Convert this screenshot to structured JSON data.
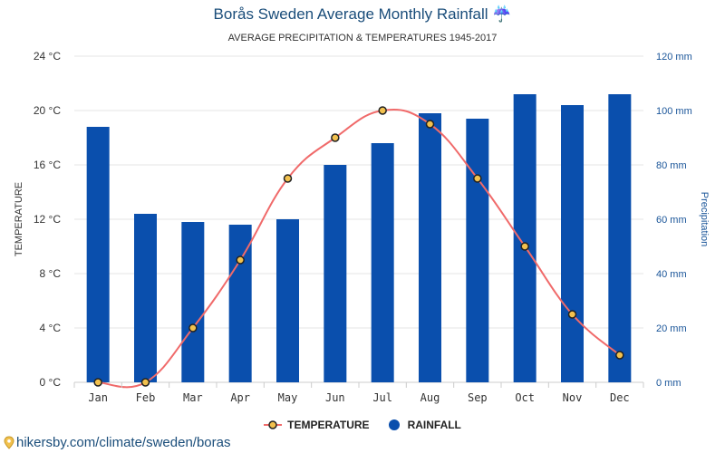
{
  "title": "Borås Sweden Average Monthly Rainfall ☔",
  "subtitle": "AVERAGE PRECIPITATION & TEMPERATURES 1945-2017",
  "footer": "hikersby.com/climate/sweden/boras",
  "legend": {
    "temperature": "TEMPERATURE",
    "rainfall": "RAINFALL"
  },
  "colors": {
    "bar": "#0a4fad",
    "line": "#f06a6a",
    "marker_fill": "#f2c14e",
    "marker_stroke": "#222222",
    "title": "#1a4d7a",
    "right_axis": "#1a5599"
  },
  "chart_data": {
    "type": "bar",
    "categories": [
      "Jan",
      "Feb",
      "Mar",
      "Apr",
      "May",
      "Jun",
      "Jul",
      "Aug",
      "Sep",
      "Oct",
      "Nov",
      "Dec"
    ],
    "series": [
      {
        "name": "RAINFALL",
        "type": "bar",
        "axis": "right",
        "unit": "mm",
        "values": [
          94,
          62,
          59,
          58,
          60,
          80,
          88,
          99,
          97,
          106,
          102,
          106
        ]
      },
      {
        "name": "TEMPERATURE",
        "type": "line",
        "axis": "left",
        "unit": "°C",
        "values": [
          0,
          0,
          4,
          9,
          15,
          18,
          20,
          19,
          15,
          10,
          5,
          2
        ]
      }
    ],
    "ylabel": "TEMPERATURE",
    "y2label": "Precipitation",
    "ylim": [
      0,
      24
    ],
    "y2lim": [
      0,
      120
    ],
    "yticks": [
      "0 °C",
      "4 °C",
      "8 °C",
      "12 °C",
      "16 °C",
      "20 °C",
      "24 °C"
    ],
    "y2ticks": [
      "0 mm",
      "20 mm",
      "40 mm",
      "60 mm",
      "80 mm",
      "100 mm",
      "120 mm"
    ],
    "grid": true,
    "legend_position": "bottom"
  }
}
